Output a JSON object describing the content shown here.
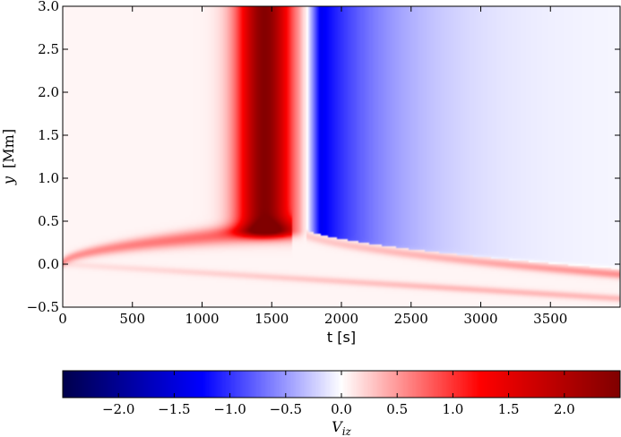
{
  "chart_data": [
    {
      "type": "heatmap",
      "title": "",
      "xlabel": "t [s]",
      "ylabel_var": "y",
      "ylabel_unit": "[Mm]",
      "xlim": [
        0,
        4000
      ],
      "ylim": [
        -0.5,
        3.0
      ],
      "xticks": [
        0,
        500,
        1000,
        1500,
        2000,
        2500,
        3000,
        3500
      ],
      "xtick_labels": [
        "0",
        "500",
        "1000",
        "1500",
        "2000",
        "2500",
        "3000",
        "3500"
      ],
      "yticks": [
        -0.5,
        0.0,
        0.5,
        1.0,
        1.5,
        2.0,
        2.5,
        3.0
      ],
      "ytick_labels": [
        "−0.5",
        "0.0",
        "0.5",
        "1.0",
        "1.5",
        "2.0",
        "2.5",
        "3.0"
      ],
      "colormap": "seismic",
      "features": [
        {
          "name": "positive band",
          "t_start": 1150,
          "t_peak": 1450,
          "t_end": 1700,
          "y_from": 0.4,
          "y_to": 3.0,
          "peak_value": 2.4
        },
        {
          "name": "negative band",
          "t_start": 1750,
          "t_peak": 1850,
          "t_end": 4000,
          "y_from": 0.5,
          "y_to": 3.0,
          "peak_value": -1.4
        },
        {
          "name": "upper branch",
          "t_start": 0,
          "t_end": 1650,
          "y_start": 0.0,
          "y_end": 0.4,
          "peak_value": 0.8
        },
        {
          "name": "front",
          "t_start": 1700,
          "t_end": 4000,
          "y_start": 0.4,
          "y_end": -0.1
        },
        {
          "name": "lower branch",
          "t_start": 0,
          "t_end": 4000,
          "y_start": 0.0,
          "y_end": -0.4,
          "peak_value": 0.3
        }
      ]
    },
    {
      "type": "colorbar",
      "label_var": "V",
      "label_sub": "iz",
      "vlim": [
        -2.5,
        2.5
      ],
      "ticks": [
        -2.0,
        -1.5,
        -1.0,
        -0.5,
        0.0,
        0.5,
        1.0,
        1.5,
        2.0
      ],
      "tick_labels": [
        "−2.0",
        "−1.5",
        "−1.0",
        "−0.5",
        "0.0",
        "0.5",
        "1.0",
        "1.5",
        "2.0"
      ],
      "colors": {
        "low": "#00004c",
        "mid_low": "#0000ff",
        "zero": "#ffffff",
        "mid_high": "#ff0000",
        "high": "#800000"
      }
    }
  ]
}
